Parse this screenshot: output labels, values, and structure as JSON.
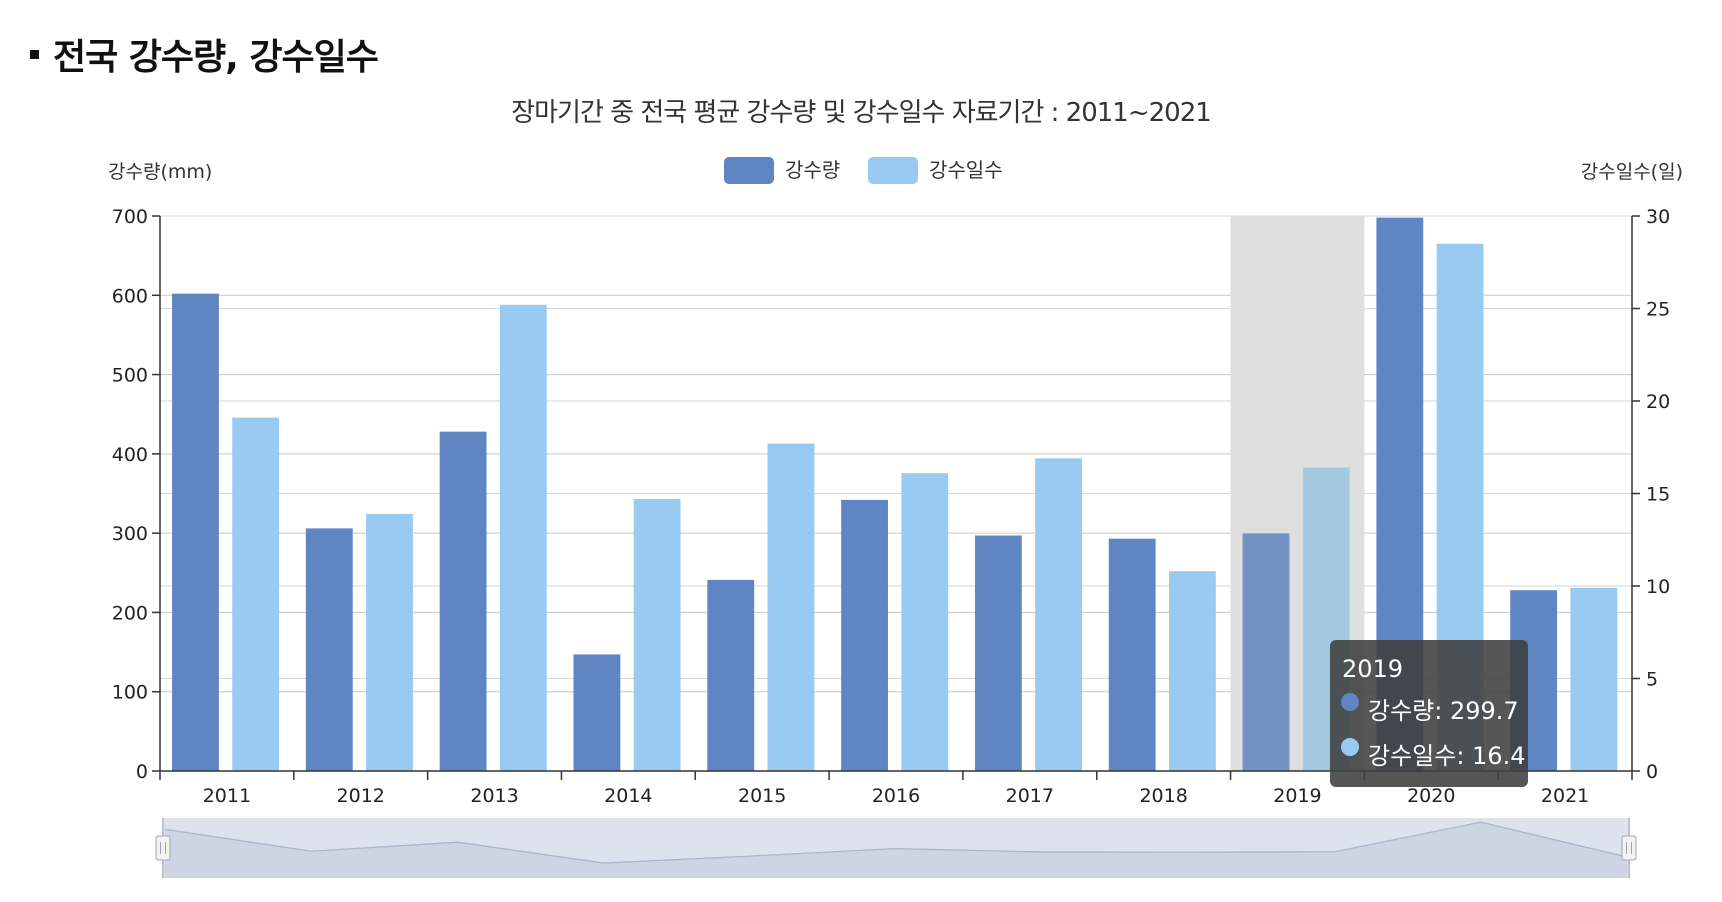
{
  "section": {
    "title": "전국 강수량, 강수일수"
  },
  "colors": {
    "rainfall": "#5f86c2",
    "days": "#99cbf2",
    "highlight_band": "#dedede",
    "tooltip_bg": "#3f3f3f",
    "navigator_fill": "#dde3ec",
    "navigator_line": "#a9b6ca"
  },
  "chart_data": {
    "type": "bar",
    "title": "장마기간 중 전국 평균 강수량 및 강수일수 자료기간 : 2011~2021",
    "categories": [
      "2011",
      "2012",
      "2013",
      "2014",
      "2015",
      "2016",
      "2017",
      "2018",
      "2019",
      "2020",
      "2021"
    ],
    "series": [
      {
        "name": "강수량",
        "axis": "left",
        "values": [
          602,
          306,
          428,
          147,
          241,
          342,
          297,
          293,
          299.7,
          698,
          228
        ]
      },
      {
        "name": "강수일수",
        "axis": "right",
        "values": [
          19.1,
          13.9,
          25.2,
          14.7,
          17.7,
          16.1,
          16.9,
          10.8,
          16.4,
          28.5,
          9.9
        ]
      }
    ],
    "ylabel_left": "강수량(mm)",
    "ylabel_right": "강수일수(일)",
    "ylim_left": [
      0,
      700
    ],
    "ylim_right": [
      0,
      30
    ],
    "yticks_left": [
      "0",
      "100",
      "200",
      "300",
      "400",
      "500",
      "600",
      "700"
    ],
    "yticks_right": [
      "0",
      "5",
      "10",
      "15",
      "20",
      "25",
      "30"
    ],
    "legend": [
      "강수량",
      "강수일수"
    ],
    "legend_position": "top-center",
    "grid": true,
    "highlighted_category": "2019",
    "tooltip": {
      "title": "2019",
      "lines": [
        "강수량: 299.7",
        "강수일수: 16.4"
      ]
    }
  }
}
